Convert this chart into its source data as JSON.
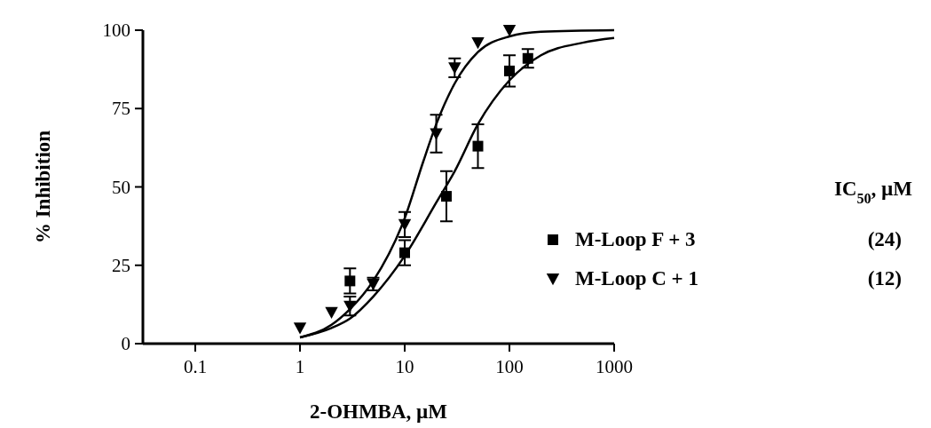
{
  "chart_data": {
    "type": "scatter",
    "xlabel": "2-OHMBA, µM",
    "ylabel": "% Inhibition",
    "legend_title": "IC$_{50}$, µM",
    "legend": "right",
    "log": "x",
    "xlim": [
      0.0316,
      1000
    ],
    "xticks": [
      {
        "value": 0.1,
        "label": "0.1"
      },
      1,
      10,
      100,
      1000
    ],
    "ylim": [
      0,
      100
    ],
    "yticks": [
      0,
      25,
      50,
      75,
      100
    ],
    "series": [
      {
        "name": "M-Loop F + 3",
        "color": "#000000",
        "marker": "square",
        "x": [
          3,
          10,
          25,
          50,
          100,
          150
        ],
        "values": [
          20,
          29,
          47,
          63,
          87,
          91
        ],
        "errors": [
          4,
          4,
          8,
          7,
          5,
          3
        ]
      },
      {
        "name": "M-Loop C + 1",
        "color": "#000000",
        "marker": "triangle",
        "x": [
          1,
          2,
          3,
          5,
          10,
          20,
          30,
          50,
          100
        ],
        "values": [
          5,
          10,
          12,
          19,
          38,
          67,
          88,
          96,
          100
        ],
        "errors": [
          null,
          null,
          3,
          2,
          4,
          6,
          3,
          null,
          null
        ]
      },
      {
        "type": "line",
        "color": "#000000",
        "marker": "none",
        "x": [
          1,
          2,
          3,
          5,
          10,
          20,
          30,
          50,
          100,
          200,
          500,
          1000
        ],
        "values": [
          2,
          5,
          8,
          15,
          28,
          45,
          55,
          70,
          84,
          92,
          96,
          97.5
        ]
      },
      {
        "type": "line",
        "color": "#000000",
        "marker": "none",
        "x": [
          1,
          2,
          3,
          5,
          10,
          15,
          20,
          30,
          50,
          100,
          200,
          1000
        ],
        "values": [
          2,
          6,
          11,
          20,
          40,
          58,
          70,
          83,
          93,
          98,
          99.5,
          100
        ]
      }
    ],
    "annotations": [
      "(24)",
      "(12)"
    ]
  }
}
